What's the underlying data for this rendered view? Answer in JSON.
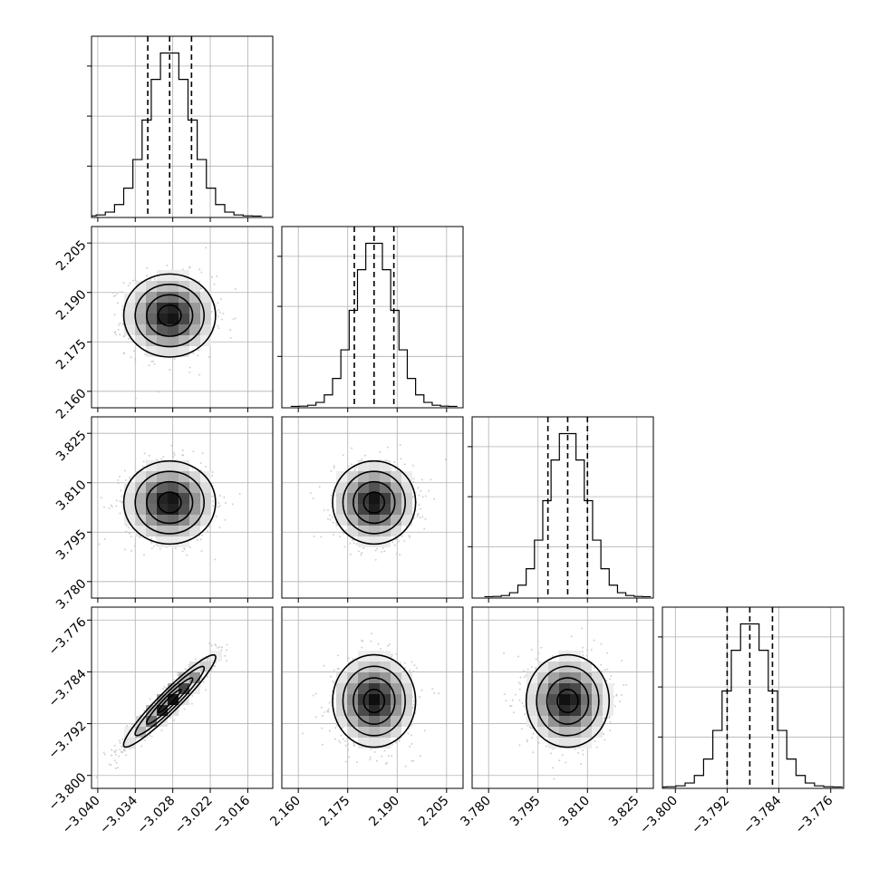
{
  "chart_data": {
    "type": "corner",
    "grid": true,
    "colors": {
      "line": "#000000",
      "grid": "#b0b0b0",
      "density_light": "#ffffff",
      "density_dark": "#000000",
      "samples": "#bdbdbd"
    },
    "parameters": [
      {
        "id": "p0",
        "center": -3.0285,
        "sigma": 0.0035,
        "range": [
          -3.041,
          -3.012
        ],
        "ticks": [
          "−3.040",
          "−3.034",
          "−3.028",
          "−3.022",
          "−3.016"
        ],
        "tick_values": [
          -3.04,
          -3.034,
          -3.028,
          -3.022,
          -3.016
        ],
        "quantiles": [
          -3.032,
          -3.0285,
          -3.025
        ]
      },
      {
        "id": "p1",
        "center": 2.183,
        "sigma": 0.006,
        "range": [
          2.155,
          2.21
        ],
        "ticks": [
          "2.160",
          "2.175",
          "2.190",
          "2.205"
        ],
        "tick_values": [
          2.16,
          2.175,
          2.19,
          2.205
        ],
        "quantiles": [
          2.177,
          2.183,
          2.189
        ]
      },
      {
        "id": "p2",
        "center": 3.804,
        "sigma": 0.006,
        "range": [
          3.775,
          3.83
        ],
        "ticks": [
          "3.780",
          "3.795",
          "3.810",
          "3.825"
        ],
        "tick_values": [
          3.78,
          3.795,
          3.81,
          3.825
        ],
        "quantiles": [
          3.798,
          3.804,
          3.81
        ]
      },
      {
        "id": "p3",
        "center": -3.7885,
        "sigma": 0.0034,
        "range": [
          -3.802,
          -3.774
        ],
        "ticks": [
          "−3.800",
          "−3.792",
          "−3.784",
          "−3.776"
        ],
        "tick_values": [
          -3.8,
          -3.792,
          -3.784,
          -3.776
        ],
        "quantiles": [
          -3.792,
          -3.7885,
          -3.785
        ]
      }
    ],
    "correlations": [
      {
        "pair": [
          0,
          3
        ],
        "rho": 0.95
      }
    ],
    "histogram_bins": 20,
    "contour_levels_sigma": [
      0.5,
      1.0,
      1.5,
      2.0
    ]
  }
}
